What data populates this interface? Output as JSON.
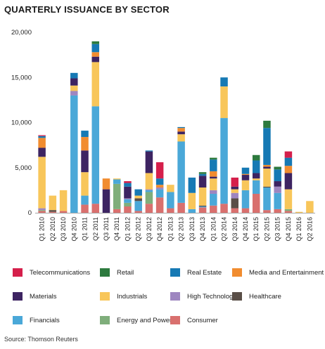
{
  "chart_data": {
    "type": "bar",
    "stacked": true,
    "title": "QUARTERLY ISSUANCE BY SECTOR",
    "source": "Source: Thomson Reuters",
    "ylim": [
      0,
      20000
    ],
    "yticks": [
      "0",
      "5,000",
      "10,000",
      "15,000",
      "20,000"
    ],
    "grid": false,
    "legend_position": "bottom",
    "categories": [
      "Q1 2010",
      "Q2 2010",
      "Q3 2010",
      "Q4 2010",
      "Q1 2011",
      "Q2 2011",
      "Q3 2011",
      "Q4 2011",
      "Q1 2012",
      "Q2 2012",
      "Q3 2012",
      "Q4 2012",
      "Q1 2013",
      "Q2 2013",
      "Q3 2013",
      "Q4 2013",
      "Q1 2014",
      "Q2 2014",
      "Q3 2014",
      "Q4 2014",
      "Q1 2015",
      "Q2 2015",
      "Q3 2015",
      "Q4 2015",
      "Q1 2016",
      "Q2 2016"
    ],
    "series": [
      {
        "name": "Consumer",
        "color": "#d9706e",
        "values": [
          200,
          100,
          200,
          0,
          900,
          1000,
          0,
          400,
          700,
          200,
          1000,
          1700,
          500,
          1100,
          0,
          600,
          800,
          1000,
          500,
          500,
          2100,
          300,
          400,
          200,
          0,
          0
        ]
      },
      {
        "name": "Energy and Power",
        "color": "#7fae7b",
        "values": [
          100,
          0,
          0,
          0,
          0,
          0,
          0,
          2800,
          400,
          0,
          1300,
          0,
          0,
          0,
          0,
          0,
          0,
          0,
          0,
          0,
          0,
          0,
          0,
          200,
          0,
          0
        ]
      },
      {
        "name": "Financials",
        "color": "#4aa8d8",
        "values": [
          0,
          0,
          0,
          13000,
          1000,
          10800,
          0,
          500,
          400,
          1100,
          200,
          900,
          1800,
          6800,
          400,
          100,
          1300,
          9500,
          0,
          2000,
          1500,
          2500,
          1800,
          0,
          0,
          0
        ]
      },
      {
        "name": "Healthcare",
        "color": "#594e47",
        "values": [
          0,
          200,
          0,
          0,
          0,
          0,
          0,
          0,
          0,
          300,
          0,
          0,
          0,
          0,
          0,
          100,
          0,
          0,
          1100,
          0,
          0,
          100,
          0,
          0,
          0,
          0
        ]
      },
      {
        "name": "High Technology",
        "color": "#9e86c0",
        "values": [
          200,
          0,
          0,
          500,
          0,
          0,
          0,
          0,
          100,
          0,
          100,
          200,
          0,
          0,
          0,
          0,
          400,
          0,
          600,
          0,
          0,
          0,
          700,
          0,
          0,
          0
        ]
      },
      {
        "name": "Industrials",
        "color": "#f8c65a",
        "values": [
          5700,
          1600,
          2300,
          600,
          2600,
          4900,
          0,
          100,
          0,
          300,
          1800,
          0,
          800,
          800,
          1800,
          2000,
          1300,
          3500,
          400,
          1100,
          200,
          2000,
          0,
          2200,
          100,
          1300
        ]
      },
      {
        "name": "Materials",
        "color": "#3d2462",
        "values": [
          1000,
          0,
          0,
          800,
          2400,
          600,
          2600,
          0,
          1300,
          0,
          2400,
          0,
          0,
          300,
          0,
          1300,
          200,
          0,
          300,
          600,
          600,
          200,
          600,
          1800,
          0,
          0
        ]
      },
      {
        "name": "Media and Entertainment",
        "color": "#f18c2f",
        "values": [
          1100,
          0,
          0,
          0,
          1500,
          500,
          1200,
          0,
          0,
          0,
          0,
          300,
          0,
          400,
          0,
          0,
          600,
          0,
          0,
          100,
          0,
          200,
          0,
          800,
          0,
          0
        ]
      },
      {
        "name": "Real Estate",
        "color": "#1679b4",
        "values": [
          200,
          0,
          0,
          600,
          700,
          900,
          0,
          0,
          400,
          700,
          100,
          700,
          0,
          100,
          1700,
          200,
          1300,
          1000,
          0,
          700,
          1400,
          4100,
          1300,
          900,
          0,
          0
        ]
      },
      {
        "name": "Retail",
        "color": "#2d7a3e",
        "values": [
          0,
          0,
          0,
          0,
          0,
          300,
          0,
          0,
          0,
          0,
          0,
          0,
          0,
          0,
          0,
          200,
          200,
          0,
          0,
          0,
          600,
          800,
          300,
          0,
          0,
          0
        ]
      },
      {
        "name": "Telecommunications",
        "color": "#d51f4b",
        "values": [
          100,
          0,
          0,
          0,
          0,
          0,
          0,
          0,
          200,
          0,
          0,
          1800,
          0,
          0,
          0,
          0,
          0,
          0,
          1000,
          0,
          0,
          0,
          0,
          700,
          0,
          0
        ]
      }
    ],
    "legend": [
      {
        "name": "Telecommunications",
        "color": "#d51f4b"
      },
      {
        "name": "Retail",
        "color": "#2d7a3e"
      },
      {
        "name": "Real Estate",
        "color": "#1679b4"
      },
      {
        "name": "Media and Entertainment",
        "color": "#f18c2f"
      },
      {
        "name": "Materials",
        "color": "#3d2462"
      },
      {
        "name": "Industrials",
        "color": "#f8c65a"
      },
      {
        "name": "High Technology",
        "color": "#9e86c0"
      },
      {
        "name": "Healthcare",
        "color": "#594e47"
      },
      {
        "name": "Financials",
        "color": "#4aa8d8"
      },
      {
        "name": "Energy and Power",
        "color": "#7fae7b"
      },
      {
        "name": "Consumer",
        "color": "#d9706e"
      }
    ]
  }
}
